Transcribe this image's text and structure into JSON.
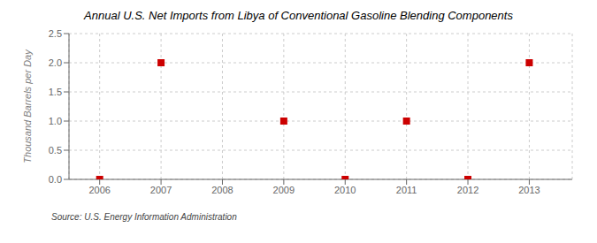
{
  "chart_data": {
    "type": "scatter",
    "title": "Annual U.S. Net Imports from Libya of Conventional Gasoline Blending Components",
    "y_label": "Thousand Barrels per Day",
    "source": "Source: U.S. Energy Information Administration",
    "x": [
      2006,
      2007,
      2009,
      2010,
      2011,
      2012,
      2013
    ],
    "values": [
      0.0,
      2.0,
      1.0,
      0.0,
      1.0,
      0.0,
      2.0
    ],
    "color": "#CC0000",
    "marker": "square",
    "xlim": [
      2005.5,
      2013.7
    ],
    "xticks": [
      2006,
      2007,
      2008,
      2009,
      2010,
      2011,
      2012,
      2013
    ],
    "ylim": [
      0.0,
      2.5
    ],
    "yticks": [
      {
        "value": 0.0,
        "label": "0.0"
      },
      0.5,
      {
        "value": 1.0,
        "label": "1.0"
      },
      1.5,
      {
        "value": 2.0,
        "label": "2.0"
      },
      2.5
    ],
    "grid": true
  }
}
